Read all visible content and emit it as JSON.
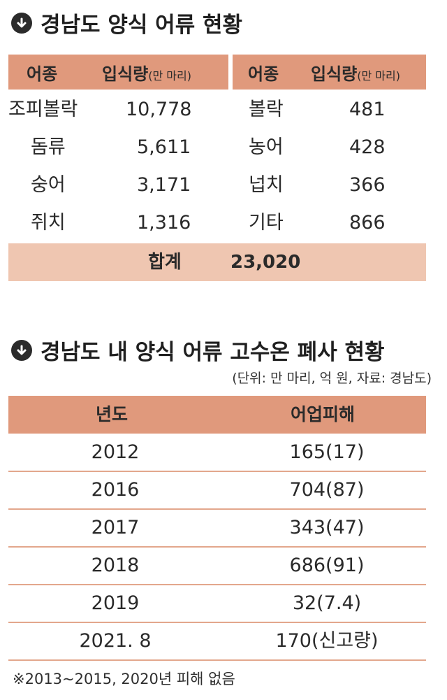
{
  "section1": {
    "title": "경남도 양식 어류 현황",
    "header": {
      "col_species": "어종",
      "col_amount": "입식량",
      "col_unit": "(만 마리)"
    },
    "rows": [
      {
        "left_species": "조피볼락",
        "left_amount": "10,778",
        "right_species": "볼락",
        "right_amount": "481"
      },
      {
        "left_species": "돔류",
        "left_amount": "5,611",
        "right_species": "농어",
        "right_amount": "428"
      },
      {
        "left_species": "숭어",
        "left_amount": "3,171",
        "right_species": "넙치",
        "right_amount": "366"
      },
      {
        "left_species": "쥐치",
        "left_amount": "1,316",
        "right_species": "기타",
        "right_amount": "866"
      }
    ],
    "total_label": "합계",
    "total_value": "23,020"
  },
  "section2": {
    "title": "경남도 내 양식 어류 고수온 폐사 현황",
    "note": "(단위: 만 마리, 억 원, 자료: 경남도)",
    "header": {
      "col_year": "년도",
      "col_damage": "어업피해"
    },
    "rows": [
      {
        "year": "2012",
        "damage": "165(17)"
      },
      {
        "year": "2016",
        "damage": "704(87)"
      },
      {
        "year": "2017",
        "damage": "343(47)"
      },
      {
        "year": "2018",
        "damage": "686(91)"
      },
      {
        "year": "2019",
        "damage": "32(7.4)"
      },
      {
        "year": "2021. 8",
        "damage": "170(신고량)"
      }
    ],
    "footnote": "※2013~2015, 2020년 피해 없음"
  },
  "colors": {
    "header_bg": "#e0997c",
    "total_bg": "#efc6b1",
    "row_line": "#e3a78d"
  },
  "icons": {
    "section_marker": "down-arrow-circle-icon"
  }
}
